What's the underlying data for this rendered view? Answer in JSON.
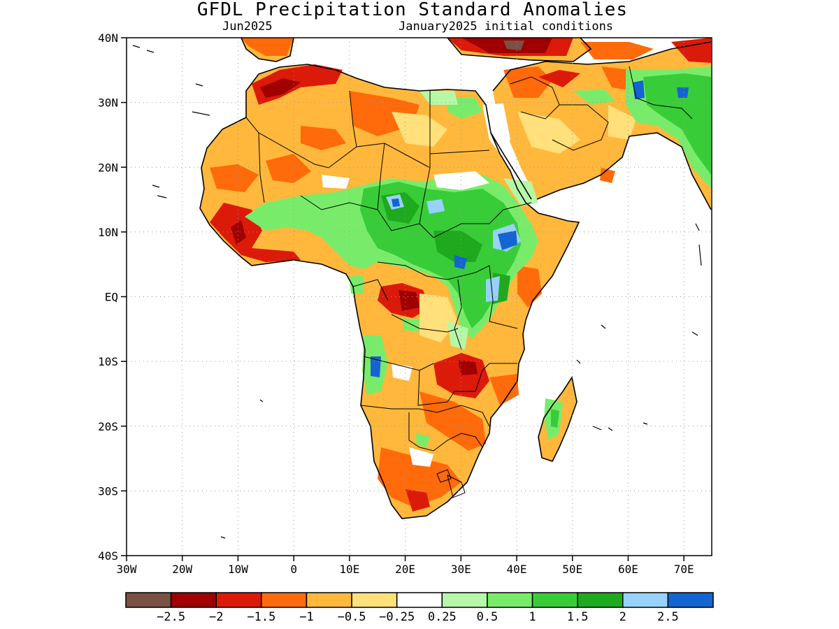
{
  "title": "GFDL Precipitation Standard Anomalies",
  "subtitle_left": "Jun2025",
  "subtitle_right": "January2025 initial conditions",
  "lat_ticks": [
    "40N",
    "30N",
    "20N",
    "10N",
    "EQ",
    "10S",
    "20S",
    "30S",
    "40S"
  ],
  "lon_ticks": [
    "30W",
    "20W",
    "10W",
    "0",
    "10E",
    "20E",
    "30E",
    "40E",
    "50E",
    "60E",
    "70E"
  ],
  "legend": {
    "colors": [
      "#7b5143",
      "#a00000",
      "#dc1a0a",
      "#ff6a0a",
      "#ffb83c",
      "#ffe07a",
      "#ffffff",
      "#b6f7a8",
      "#78ec6a",
      "#38cd38",
      "#1ea91e",
      "#96d2fa",
      "#1464d2"
    ],
    "labels": [
      "−2.5",
      "−2",
      "−1.5",
      "−1",
      "−0.5",
      "−0.25",
      "0.25",
      "0.5",
      "1",
      "1.5",
      "2",
      "2.5"
    ]
  },
  "map_colors": {
    "land_base": "#ffb83c",
    "neg_light": "#ffe07a",
    "neg_mod": "#ff6a0a",
    "neg_strong": "#dc1a0a",
    "neg_severe": "#a00000",
    "neg_extreme": "#7b5143",
    "near_normal": "#ffffff",
    "pos_light": "#b6f7a8",
    "pos_mod": "#78ec6a",
    "pos_strong": "#38cd38",
    "pos_severe": "#1ea91e",
    "pos_blue_light": "#96d2fa",
    "pos_blue": "#1464d2"
  }
}
